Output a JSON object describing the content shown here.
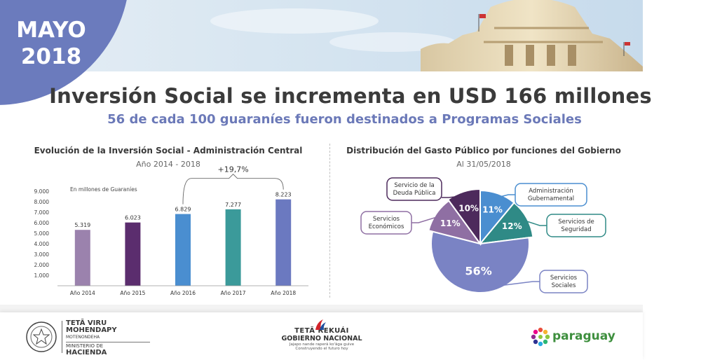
{
  "header": {
    "month": "MAYO",
    "year": "2018"
  },
  "title": "Inversión Social se incrementa en USD 166 millones",
  "subtitle": "56 de cada 100 guaraníes fueron destinados a Programas Sociales",
  "colors": {
    "badge": "#6b7bbd",
    "bar_2014": "#9b82ad",
    "bar_2015": "#5b2d6e",
    "bar_2016": "#4a8ed0",
    "bar_2017": "#3b9a9a",
    "bar_2018": "#6b79c0",
    "pie_admin": "#4a8ed0",
    "pie_seguridad": "#2f8a86",
    "pie_sociales": "#7a83c4",
    "pie_economicos": "#8f6fa3",
    "pie_deuda": "#4d2a5c"
  },
  "chart_data": [
    {
      "type": "bar",
      "title": "Evolución de la Inversión Social - Administración Central",
      "subtitle": "Año 2014 - 2018",
      "ylabel": "En millones de Guaraníes",
      "categories": [
        "Año 2014",
        "Año 2015",
        "Año 2016",
        "Año 2017",
        "Año 2018"
      ],
      "values": [
        5319,
        6023,
        6829,
        7277,
        8223
      ],
      "value_labels": [
        "5.319",
        "6.023",
        "6.829",
        "7.277",
        "8.223"
      ],
      "ylim": [
        0,
        9000
      ],
      "y_ticks": [
        1000,
        2000,
        3000,
        4000,
        5000,
        6000,
        7000,
        8000,
        9000
      ],
      "y_tick_labels": [
        "1.000",
        "2.000",
        "3.000",
        "4.000",
        "5.000",
        "6.000",
        "7.000",
        "8.000",
        "9.000"
      ],
      "annotation": "+19,7%",
      "grid": false
    },
    {
      "type": "pie",
      "title": "Distribución del Gasto Público por funciones del Gobierno",
      "subtitle": "Al 31/05/2018",
      "slices": [
        {
          "label": "Administración Gubernamental",
          "label_lines": [
            "Administración",
            "Gubernamental"
          ],
          "value": 11,
          "value_label": "11%"
        },
        {
          "label": "Servicios de Seguridad",
          "label_lines": [
            "Servicios de",
            "Seguridad"
          ],
          "value": 12,
          "value_label": "12%"
        },
        {
          "label": "Servicios Sociales",
          "label_lines": [
            "Servicios",
            "Sociales"
          ],
          "value": 56,
          "value_label": "56%"
        },
        {
          "label": "Servicios Económicos",
          "label_lines": [
            "Servicios",
            "Económicos"
          ],
          "value": 11,
          "value_label": "11%"
        },
        {
          "label": "Servicio de la Deuda Pública",
          "label_lines": [
            "Servicio de la",
            "Deuda Pública"
          ],
          "value": 10,
          "value_label": "10%"
        }
      ]
    }
  ],
  "footer": {
    "ministry_lines": [
      "TETÃ VIRU",
      "MOHENDAPY",
      "MOTENONDEHA",
      "MINISTERIO DE",
      "HACIENDA"
    ],
    "government_lines": [
      "TETÃ REKUÁI",
      "GOBIERNO NACIONAL",
      "Jajapo nande raperã ko'ãga guive",
      "Construyendo el futuro hoy"
    ],
    "brand": "paraguay"
  }
}
